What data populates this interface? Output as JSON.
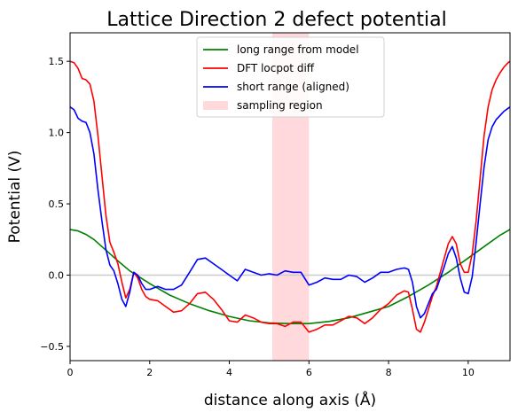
{
  "chart_data": {
    "type": "line",
    "title": "Lattice Direction 2 defect potential",
    "xlabel": "distance along axis (Å)",
    "ylabel": "Potential (V)",
    "xlim": [
      0,
      11.05
    ],
    "ylim": [
      -0.6,
      1.7
    ],
    "xticks": [
      0,
      2,
      4,
      6,
      8,
      10
    ],
    "yticks": [
      -0.5,
      0.0,
      0.5,
      1.0,
      1.5
    ],
    "xtick_labels": [
      "0",
      "2",
      "4",
      "6",
      "8",
      "10"
    ],
    "ytick_labels": [
      "−0.5",
      "0.0",
      "0.5",
      "1.0",
      "1.5"
    ],
    "grid": false,
    "legend_position": "upper center",
    "reference_line_y": 0.0,
    "sampling_region": {
      "name": "sampling region",
      "x_start": 5.08,
      "x_end": 6.0,
      "color": "#ffd9dc"
    },
    "series": [
      {
        "name": "long range from model",
        "color": "#008000",
        "x": [
          0,
          0.2,
          0.4,
          0.6,
          0.8,
          1.0,
          1.2,
          1.5,
          2.0,
          2.5,
          3.0,
          3.5,
          4.0,
          4.5,
          5.0,
          5.5,
          6.0,
          6.5,
          7.0,
          7.5,
          8.0,
          8.5,
          9.0,
          9.5,
          10.0,
          10.4,
          10.8,
          11.05
        ],
        "y": [
          0.32,
          0.31,
          0.285,
          0.25,
          0.2,
          0.15,
          0.1,
          0.03,
          -0.06,
          -0.14,
          -0.2,
          -0.25,
          -0.29,
          -0.32,
          -0.335,
          -0.34,
          -0.34,
          -0.325,
          -0.3,
          -0.26,
          -0.22,
          -0.15,
          -0.07,
          0.02,
          0.12,
          0.2,
          0.28,
          0.32
        ]
      },
      {
        "name": "DFT locpot diff",
        "color": "#ff0000",
        "x": [
          0,
          0.1,
          0.2,
          0.3,
          0.4,
          0.5,
          0.6,
          0.7,
          0.8,
          0.9,
          1.0,
          1.1,
          1.2,
          1.3,
          1.4,
          1.5,
          1.6,
          1.7,
          1.8,
          1.9,
          2.0,
          2.2,
          2.4,
          2.6,
          2.8,
          3.0,
          3.2,
          3.4,
          3.6,
          3.8,
          4.0,
          4.2,
          4.4,
          4.6,
          4.8,
          5.0,
          5.2,
          5.4,
          5.6,
          5.8,
          6.0,
          6.2,
          6.4,
          6.6,
          6.8,
          7.0,
          7.2,
          7.4,
          7.6,
          7.8,
          8.0,
          8.2,
          8.4,
          8.5,
          8.6,
          8.7,
          8.8,
          8.9,
          9.0,
          9.1,
          9.2,
          9.3,
          9.4,
          9.5,
          9.6,
          9.7,
          9.8,
          9.9,
          10.0,
          10.1,
          10.2,
          10.3,
          10.4,
          10.5,
          10.6,
          10.7,
          10.8,
          10.9,
          11.0,
          11.05
        ],
        "y": [
          1.5,
          1.49,
          1.45,
          1.38,
          1.37,
          1.34,
          1.22,
          0.98,
          0.7,
          0.42,
          0.23,
          0.16,
          0.08,
          -0.05,
          -0.16,
          -0.1,
          0.02,
          -0.02,
          -0.1,
          -0.15,
          -0.17,
          -0.18,
          -0.22,
          -0.26,
          -0.25,
          -0.2,
          -0.13,
          -0.12,
          -0.17,
          -0.24,
          -0.32,
          -0.33,
          -0.28,
          -0.3,
          -0.33,
          -0.34,
          -0.34,
          -0.36,
          -0.33,
          -0.33,
          -0.4,
          -0.38,
          -0.35,
          -0.35,
          -0.32,
          -0.29,
          -0.3,
          -0.34,
          -0.3,
          -0.24,
          -0.2,
          -0.14,
          -0.11,
          -0.12,
          -0.24,
          -0.38,
          -0.4,
          -0.33,
          -0.24,
          -0.15,
          -0.08,
          0.02,
          0.12,
          0.22,
          0.27,
          0.22,
          0.08,
          0.02,
          0.02,
          0.15,
          0.38,
          0.68,
          0.98,
          1.18,
          1.3,
          1.37,
          1.42,
          1.46,
          1.49,
          1.5
        ]
      },
      {
        "name": "short range (aligned)",
        "color": "#0000ff",
        "x": [
          0,
          0.1,
          0.2,
          0.3,
          0.4,
          0.5,
          0.6,
          0.7,
          0.8,
          0.9,
          1.0,
          1.1,
          1.2,
          1.3,
          1.4,
          1.5,
          1.6,
          1.7,
          1.8,
          1.9,
          2.0,
          2.2,
          2.4,
          2.6,
          2.8,
          3.0,
          3.2,
          3.4,
          3.6,
          3.8,
          4.0,
          4.2,
          4.4,
          4.6,
          4.8,
          5.0,
          5.2,
          5.4,
          5.6,
          5.8,
          6.0,
          6.2,
          6.4,
          6.6,
          6.8,
          7.0,
          7.2,
          7.4,
          7.6,
          7.8,
          8.0,
          8.2,
          8.4,
          8.5,
          8.6,
          8.7,
          8.8,
          8.9,
          9.0,
          9.1,
          9.2,
          9.3,
          9.4,
          9.5,
          9.6,
          9.7,
          9.8,
          9.9,
          10.0,
          10.1,
          10.2,
          10.3,
          10.4,
          10.5,
          10.6,
          10.7,
          10.8,
          10.9,
          11.0,
          11.05
        ],
        "y": [
          1.18,
          1.16,
          1.1,
          1.08,
          1.07,
          1.0,
          0.85,
          0.6,
          0.38,
          0.18,
          0.07,
          0.03,
          -0.06,
          -0.17,
          -0.22,
          -0.12,
          0.02,
          0.0,
          -0.06,
          -0.1,
          -0.1,
          -0.08,
          -0.1,
          -0.1,
          -0.07,
          0.02,
          0.11,
          0.12,
          0.08,
          0.04,
          0.0,
          -0.04,
          0.04,
          0.02,
          0.0,
          0.01,
          0.0,
          0.03,
          0.02,
          0.02,
          -0.07,
          -0.05,
          -0.02,
          -0.03,
          -0.03,
          0.0,
          -0.01,
          -0.05,
          -0.02,
          0.02,
          0.02,
          0.04,
          0.05,
          0.04,
          -0.05,
          -0.22,
          -0.3,
          -0.27,
          -0.2,
          -0.13,
          -0.1,
          -0.02,
          0.06,
          0.15,
          0.2,
          0.12,
          -0.02,
          -0.12,
          -0.13,
          -0.01,
          0.23,
          0.5,
          0.76,
          0.95,
          1.04,
          1.09,
          1.12,
          1.15,
          1.17,
          1.18
        ]
      }
    ]
  }
}
